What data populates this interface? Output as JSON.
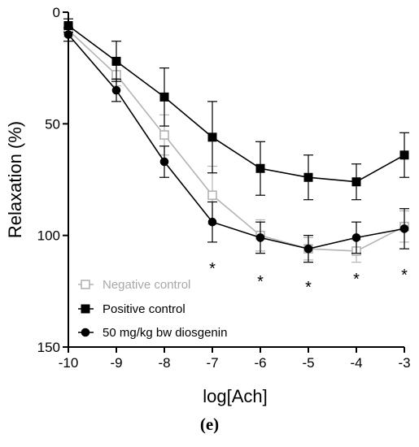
{
  "chart_data": {
    "type": "line",
    "xlabel": "log[Ach]",
    "ylabel": "Relaxation (%)",
    "x": [
      -10,
      -9,
      -8,
      -7,
      -6,
      -5,
      -4,
      -3
    ],
    "xticks": [
      "-10",
      "-9",
      "-8",
      "-7",
      "-6",
      "-5",
      "-4",
      "-3"
    ],
    "yticks": [
      "0",
      "50",
      "100",
      "150"
    ],
    "xlim": [
      -10,
      -3
    ],
    "ylim": [
      0,
      150
    ],
    "y_inverted": true,
    "grid": false,
    "legend_position": "bottom-left",
    "series": [
      {
        "name": "Negative control",
        "marker": "open-square",
        "color": "#b3b3b3",
        "values": [
          8,
          28,
          55,
          82,
          100,
          106,
          107,
          96
        ],
        "errors": [
          3,
          5,
          9,
          13,
          7,
          5,
          5,
          7
        ]
      },
      {
        "name": "Positive control",
        "marker": "filled-square",
        "color": "#000000",
        "values": [
          6,
          22,
          38,
          56,
          70,
          74,
          76,
          64
        ],
        "errors": [
          3,
          9,
          13,
          16,
          12,
          10,
          8,
          10
        ]
      },
      {
        "name": "50 mg/kg bw diosgenin",
        "marker": "filled-circle",
        "color": "#000000",
        "values": [
          10,
          35,
          67,
          94,
          101,
          106,
          101,
          97
        ],
        "errors": [
          3,
          5,
          7,
          9,
          7,
          6,
          7,
          9
        ]
      }
    ],
    "annotations": [
      {
        "x": -7,
        "text": "*"
      },
      {
        "x": -6,
        "text": "*"
      },
      {
        "x": -5,
        "text": "*"
      },
      {
        "x": -4,
        "text": "*"
      },
      {
        "x": -3,
        "text": "*"
      }
    ]
  },
  "panel_label": "(e)"
}
